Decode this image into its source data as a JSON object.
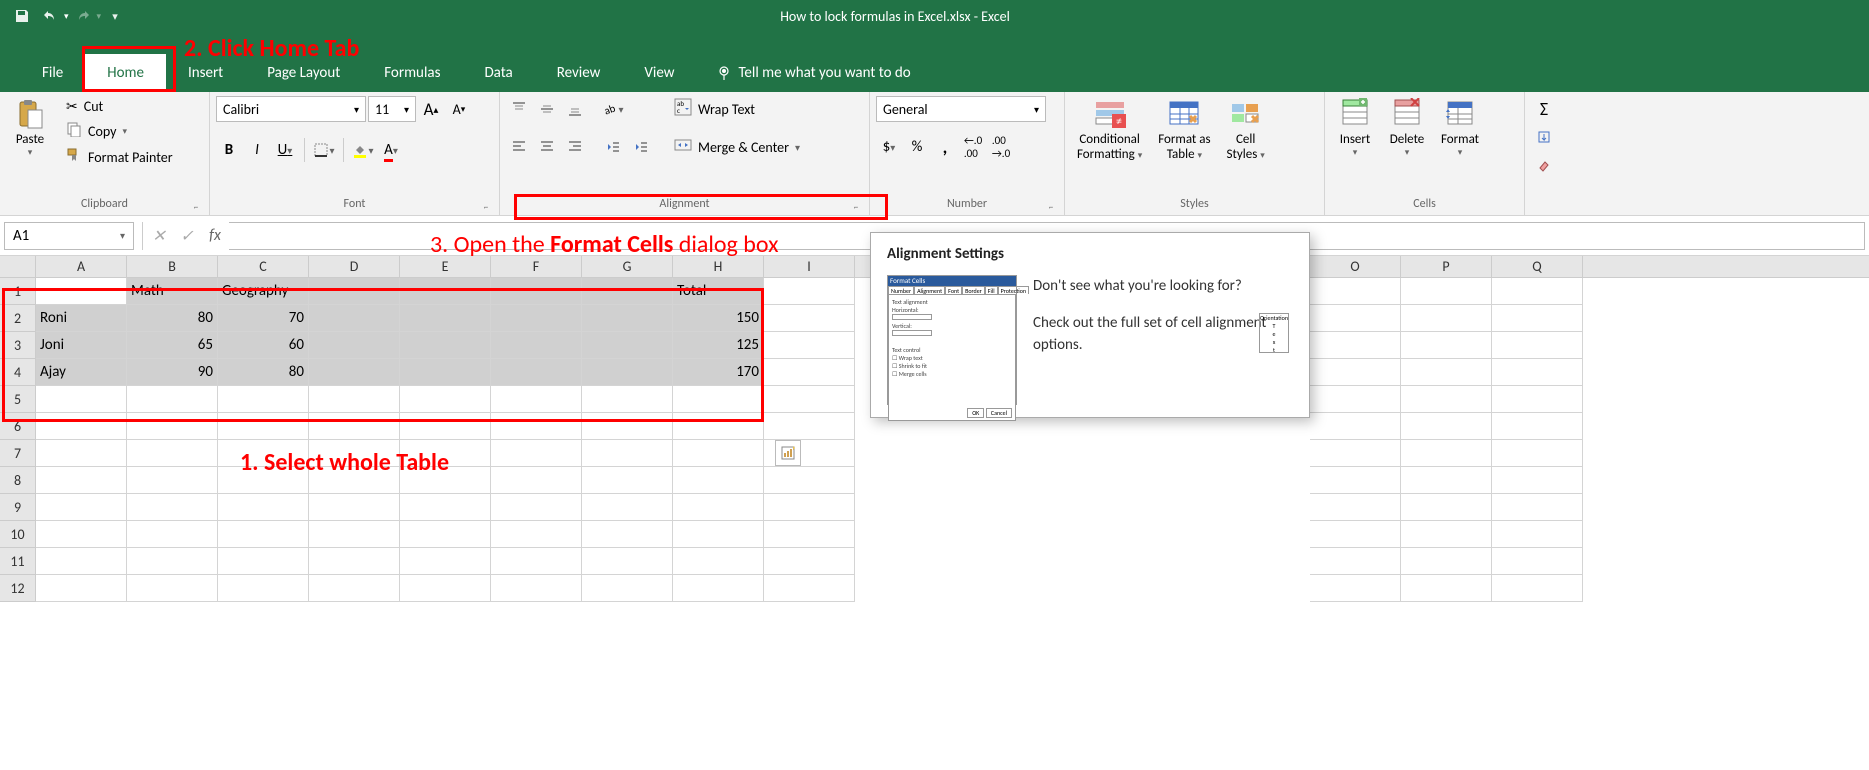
{
  "colors": {
    "excel_green": "#217346",
    "ribbon_bg": "#f3f3f3",
    "annotation_red": "#ff0000",
    "grid_border": "#d4d4d4",
    "selection_fill": "#d0d0d0"
  },
  "titlebar": {
    "title": "How to lock formulas in Excel.xlsx - Excel"
  },
  "tabs": {
    "file": "File",
    "home": "Home",
    "insert": "Insert",
    "page_layout": "Page Layout",
    "formulas": "Formulas",
    "data": "Data",
    "review": "Review",
    "view": "View",
    "tell_me": "Tell me what you want to do"
  },
  "ribbon": {
    "clipboard": {
      "label": "Clipboard",
      "paste": "Paste",
      "cut": "Cut",
      "copy": "Copy",
      "format_painter": "Format Painter"
    },
    "font": {
      "label": "Font",
      "font_name": "Calibri",
      "font_size": "11"
    },
    "alignment": {
      "label": "Alignment",
      "wrap_text": "Wrap Text",
      "merge_center": "Merge & Center"
    },
    "number": {
      "label": "Number",
      "format": "General"
    },
    "styles": {
      "label": "Styles",
      "conditional": "Conditional",
      "conditional2": "Formatting",
      "format_table": "Format as",
      "format_table2": "Table",
      "cell_styles": "Cell",
      "cell_styles2": "Styles"
    },
    "cells": {
      "label": "Cells",
      "insert": "Insert",
      "delete": "Delete",
      "format": "Format"
    }
  },
  "formula_bar": {
    "name_box": "A1",
    "fx": "fx"
  },
  "annotations": {
    "step1": "1. Select whole Table",
    "step2": "2. Click Home Tab",
    "step3_a": "3. Open the ",
    "step3_b": "Format Cells",
    "step3_c": " dialog box"
  },
  "tooltip": {
    "heading": "Alignment Settings",
    "line1": "Don't see what you're looking for?",
    "line2": "Check out the full set of cell alignment options."
  },
  "grid": {
    "columns": [
      "A",
      "B",
      "C",
      "D",
      "E",
      "F",
      "G",
      "H",
      "I",
      "O",
      "P",
      "Q"
    ],
    "selected_cols_count": 8,
    "rows": [
      {
        "n": "1",
        "cells": [
          "",
          "Math",
          "Geography",
          "",
          "",
          "",
          "",
          "Total"
        ],
        "sel": true,
        "active": 0
      },
      {
        "n": "2",
        "cells": [
          "Roni",
          "80",
          "70",
          "",
          "",
          "",
          "",
          "150"
        ],
        "sel": true,
        "num_cols": [
          1,
          2,
          7
        ]
      },
      {
        "n": "3",
        "cells": [
          "Joni",
          "65",
          "60",
          "",
          "",
          "",
          "",
          "125"
        ],
        "sel": true,
        "num_cols": [
          1,
          2,
          7
        ]
      },
      {
        "n": "4",
        "cells": [
          "Ajay",
          "90",
          "80",
          "",
          "",
          "",
          "",
          "170"
        ],
        "sel": true,
        "num_cols": [
          1,
          2,
          7
        ]
      },
      {
        "n": "5",
        "cells": [
          "",
          "",
          "",
          "",
          "",
          "",
          "",
          ""
        ]
      },
      {
        "n": "6",
        "cells": [
          "",
          "",
          "",
          "",
          "",
          "",
          "",
          ""
        ]
      },
      {
        "n": "7",
        "cells": [
          "",
          "",
          "",
          "",
          "",
          "",
          "",
          ""
        ]
      },
      {
        "n": "8",
        "cells": [
          "",
          "",
          "",
          "",
          "",
          "",
          "",
          ""
        ]
      },
      {
        "n": "9",
        "cells": [
          "",
          "",
          "",
          "",
          "",
          "",
          "",
          ""
        ]
      },
      {
        "n": "10",
        "cells": [
          "",
          "",
          "",
          "",
          "",
          "",
          "",
          ""
        ]
      },
      {
        "n": "11",
        "cells": [
          "",
          "",
          "",
          "",
          "",
          "",
          "",
          ""
        ]
      },
      {
        "n": "12",
        "cells": [
          "",
          "",
          "",
          "",
          "",
          "",
          "",
          ""
        ]
      }
    ]
  }
}
